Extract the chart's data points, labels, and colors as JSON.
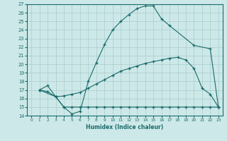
{
  "xlabel": "Humidex (Indice chaleur)",
  "bg_color": "#cde8e8",
  "line_color": "#1a6b6b",
  "grid_color": "#aacccc",
  "xlim": [
    -0.5,
    23.5
  ],
  "ylim": [
    14,
    27
  ],
  "xticks": [
    0,
    1,
    2,
    3,
    4,
    5,
    6,
    7,
    8,
    9,
    10,
    11,
    12,
    13,
    14,
    15,
    16,
    17,
    18,
    19,
    20,
    21,
    22,
    23
  ],
  "yticks": [
    14,
    15,
    16,
    17,
    18,
    19,
    20,
    21,
    22,
    23,
    24,
    25,
    26,
    27
  ],
  "line1_x": [
    1,
    2,
    3,
    4,
    5,
    6,
    7,
    8,
    9,
    10,
    11,
    12,
    13,
    14,
    15,
    16,
    17,
    20,
    22,
    23
  ],
  "line1_y": [
    17.0,
    17.5,
    16.2,
    15.0,
    14.2,
    14.5,
    18.0,
    20.2,
    22.3,
    24.0,
    25.0,
    25.8,
    26.5,
    26.8,
    26.8,
    25.3,
    24.5,
    22.2,
    21.8,
    15.0
  ],
  "line2_x": [
    1,
    2,
    3,
    4,
    5,
    6,
    7,
    8,
    9,
    10,
    11,
    12,
    13,
    14,
    15,
    16,
    17,
    18,
    19,
    20,
    21,
    22,
    23
  ],
  "line2_y": [
    17.0,
    16.8,
    16.2,
    16.3,
    16.5,
    16.7,
    17.2,
    17.7,
    18.2,
    18.7,
    19.2,
    19.5,
    19.8,
    20.1,
    20.3,
    20.5,
    20.7,
    20.8,
    20.5,
    19.5,
    17.2,
    16.5,
    15.0
  ],
  "line3_x": [
    1,
    3,
    4,
    5,
    6,
    7,
    8,
    9,
    10,
    11,
    12,
    13,
    14,
    15,
    16,
    17,
    18,
    19,
    20,
    21,
    22,
    23
  ],
  "line3_y": [
    17.0,
    16.2,
    15.0,
    15.0,
    15.0,
    15.0,
    15.0,
    15.0,
    15.0,
    15.0,
    15.0,
    15.0,
    15.0,
    15.0,
    15.0,
    15.0,
    15.0,
    15.0,
    15.0,
    15.0,
    15.0,
    15.0
  ]
}
